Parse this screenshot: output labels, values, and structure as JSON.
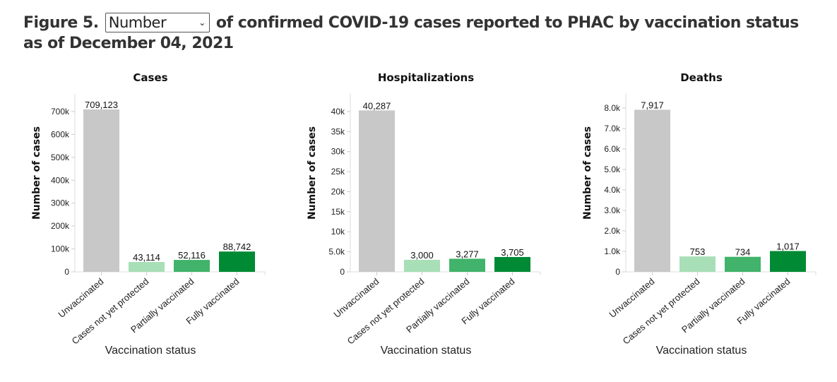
{
  "header": {
    "prefix": "Figure 5.",
    "select_value": "Number",
    "suffix": "of confirmed COVID-19 cases reported to PHAC by vaccination status as of December 04, 2021"
  },
  "colors": [
    "#c8c8c8",
    "#a8dfb7",
    "#41b36a",
    "#008a34"
  ],
  "chart_data": [
    {
      "type": "bar",
      "title": "Cases",
      "xlabel": "Vaccination status",
      "ylabel": "Number of cases",
      "categories": [
        "Unvaccinated",
        "Cases not yet protected",
        "Partially vaccinated",
        "Fully vaccinated"
      ],
      "values": [
        709123,
        43114,
        52116,
        88742
      ],
      "value_labels": [
        "709,123",
        "43,114",
        "52,116",
        "88,742"
      ],
      "ylim": [
        0,
        777000
      ],
      "yticks": [
        0,
        100000,
        200000,
        300000,
        400000,
        500000,
        600000,
        700000
      ],
      "ytick_labels": [
        "0",
        "100k",
        "200k",
        "300k",
        "400k",
        "500k",
        "600k",
        "700k"
      ]
    },
    {
      "type": "bar",
      "title": "Hospitalizations",
      "xlabel": "Vaccination status",
      "ylabel": "Number of cases",
      "categories": [
        "Unvaccinated",
        "Cases not yet protected",
        "Partially vaccinated",
        "Fully vaccinated"
      ],
      "values": [
        40287,
        3000,
        3277,
        3705
      ],
      "value_labels": [
        "40,287",
        "3,000",
        "3,277",
        "3,705"
      ],
      "ylim": [
        0,
        44400
      ],
      "yticks": [
        0,
        5000,
        10000,
        15000,
        20000,
        25000,
        30000,
        35000,
        40000
      ],
      "ytick_labels": [
        "0",
        "5.0k",
        "10k",
        "15k",
        "20k",
        "25k",
        "30k",
        "35k",
        "40k"
      ]
    },
    {
      "type": "bar",
      "title": "Deaths",
      "xlabel": "Vaccination status",
      "ylabel": "Number of cases",
      "categories": [
        "Unvaccinated",
        "Cases not yet protected",
        "Partially vaccinated",
        "Fully vaccinated"
      ],
      "values": [
        7917,
        753,
        734,
        1017
      ],
      "value_labels": [
        "7,917",
        "753",
        "734",
        "1,017"
      ],
      "ylim": [
        0,
        8690
      ],
      "yticks": [
        0,
        1000,
        2000,
        3000,
        4000,
        5000,
        6000,
        7000,
        8000
      ],
      "ytick_labels": [
        "0",
        "1.0k",
        "2.0k",
        "3.0k",
        "4.0k",
        "5.0k",
        "6.0k",
        "7.0k",
        "8.0k"
      ]
    }
  ]
}
